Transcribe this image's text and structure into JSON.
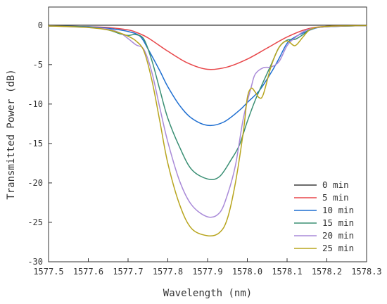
{
  "chart_data": {
    "type": "line",
    "xlabel": "Wavelength (nm)",
    "ylabel": "Transmitted Power (dB)",
    "xlim": [
      1577.5,
      1578.3
    ],
    "ylim": [
      -30,
      2.3
    ],
    "xticks": [
      "1577.5",
      "1577.6",
      "1577.7",
      "1577.8",
      "1577.9",
      "1578.0",
      "1578.1",
      "1578.2",
      "1578.3"
    ],
    "yticks": [
      "0",
      "-5",
      "-10",
      "-15",
      "-20",
      "-25",
      "-30"
    ],
    "grid": false,
    "legend_position": "bottom-right",
    "series": [
      {
        "name": "0 min",
        "color": "#3a3a3a",
        "points": [
          [
            1577.5,
            0.0
          ],
          [
            1578.3,
            0.0
          ]
        ]
      },
      {
        "name": "5 min",
        "color": "#e8474a",
        "points": [
          [
            1577.5,
            -0.1
          ],
          [
            1577.6,
            -0.2
          ],
          [
            1577.65,
            -0.3
          ],
          [
            1577.7,
            -0.6
          ],
          [
            1577.72,
            -0.9
          ],
          [
            1577.75,
            -1.6
          ],
          [
            1577.8,
            -3.3
          ],
          [
            1577.85,
            -4.8
          ],
          [
            1577.9,
            -5.6
          ],
          [
            1577.95,
            -5.3
          ],
          [
            1578.0,
            -4.3
          ],
          [
            1578.05,
            -2.9
          ],
          [
            1578.1,
            -1.5
          ],
          [
            1578.15,
            -0.5
          ],
          [
            1578.2,
            -0.15
          ],
          [
            1578.3,
            -0.05
          ]
        ]
      },
      {
        "name": "10 min",
        "color": "#1f6fd1",
        "points": [
          [
            1577.5,
            -0.1
          ],
          [
            1577.6,
            -0.2
          ],
          [
            1577.65,
            -0.4
          ],
          [
            1577.7,
            -0.8
          ],
          [
            1577.73,
            -1.4
          ],
          [
            1577.75,
            -3.0
          ],
          [
            1577.78,
            -5.8
          ],
          [
            1577.8,
            -7.8
          ],
          [
            1577.83,
            -10.2
          ],
          [
            1577.86,
            -11.8
          ],
          [
            1577.9,
            -12.7
          ],
          [
            1577.94,
            -12.3
          ],
          [
            1577.98,
            -10.8
          ],
          [
            1578.0,
            -9.8
          ],
          [
            1578.03,
            -8.3
          ],
          [
            1578.06,
            -6.0
          ],
          [
            1578.08,
            -4.2
          ],
          [
            1578.1,
            -2.3
          ],
          [
            1578.12,
            -1.5
          ],
          [
            1578.14,
            -1.0
          ],
          [
            1578.17,
            -0.4
          ],
          [
            1578.2,
            -0.2
          ],
          [
            1578.3,
            -0.05
          ]
        ]
      },
      {
        "name": "15 min",
        "color": "#3a8f74",
        "points": [
          [
            1577.5,
            -0.1
          ],
          [
            1577.6,
            -0.25
          ],
          [
            1577.65,
            -0.6
          ],
          [
            1577.68,
            -1.1
          ],
          [
            1577.7,
            -1.3
          ],
          [
            1577.72,
            -1.2
          ],
          [
            1577.74,
            -1.8
          ],
          [
            1577.76,
            -4.5
          ],
          [
            1577.78,
            -8.2
          ],
          [
            1577.8,
            -11.8
          ],
          [
            1577.83,
            -15.5
          ],
          [
            1577.86,
            -18.3
          ],
          [
            1577.9,
            -19.5
          ],
          [
            1577.93,
            -19.2
          ],
          [
            1577.96,
            -17.0
          ],
          [
            1577.98,
            -15.2
          ],
          [
            1578.0,
            -12.2
          ],
          [
            1578.02,
            -9.5
          ],
          [
            1578.04,
            -7.2
          ],
          [
            1578.06,
            -5.0
          ],
          [
            1578.08,
            -2.8
          ],
          [
            1578.1,
            -1.9
          ],
          [
            1578.12,
            -1.8
          ],
          [
            1578.14,
            -1.2
          ],
          [
            1578.16,
            -0.5
          ],
          [
            1578.2,
            -0.2
          ],
          [
            1578.3,
            -0.05
          ]
        ]
      },
      {
        "name": "20 min",
        "color": "#a98ad8",
        "points": [
          [
            1577.5,
            -0.1
          ],
          [
            1577.6,
            -0.3
          ],
          [
            1577.65,
            -0.5
          ],
          [
            1577.68,
            -1.0
          ],
          [
            1577.7,
            -1.7
          ],
          [
            1577.72,
            -2.5
          ],
          [
            1577.74,
            -3.1
          ],
          [
            1577.76,
            -6.0
          ],
          [
            1577.78,
            -10.5
          ],
          [
            1577.8,
            -14.8
          ],
          [
            1577.83,
            -19.8
          ],
          [
            1577.86,
            -22.8
          ],
          [
            1577.9,
            -24.3
          ],
          [
            1577.93,
            -23.8
          ],
          [
            1577.95,
            -21.5
          ],
          [
            1577.97,
            -17.8
          ],
          [
            1577.99,
            -11.8
          ],
          [
            1578.01,
            -7.8
          ],
          [
            1578.02,
            -6.2
          ],
          [
            1578.04,
            -5.4
          ],
          [
            1578.06,
            -5.3
          ],
          [
            1578.08,
            -4.6
          ],
          [
            1578.1,
            -2.6
          ],
          [
            1578.12,
            -1.6
          ],
          [
            1578.15,
            -0.6
          ],
          [
            1578.2,
            -0.2
          ],
          [
            1578.3,
            -0.05
          ]
        ]
      },
      {
        "name": "25 min",
        "color": "#b8a51e",
        "points": [
          [
            1577.5,
            -0.1
          ],
          [
            1577.6,
            -0.3
          ],
          [
            1577.65,
            -0.6
          ],
          [
            1577.68,
            -1.0
          ],
          [
            1577.7,
            -1.4
          ],
          [
            1577.72,
            -2.0
          ],
          [
            1577.74,
            -3.3
          ],
          [
            1577.76,
            -7.0
          ],
          [
            1577.78,
            -12.2
          ],
          [
            1577.8,
            -17.5
          ],
          [
            1577.83,
            -22.8
          ],
          [
            1577.86,
            -25.8
          ],
          [
            1577.9,
            -26.7
          ],
          [
            1577.93,
            -26.3
          ],
          [
            1577.95,
            -24.5
          ],
          [
            1577.97,
            -20.0
          ],
          [
            1577.99,
            -13.5
          ],
          [
            1578.0,
            -9.2
          ],
          [
            1578.01,
            -8.0
          ],
          [
            1578.02,
            -8.5
          ],
          [
            1578.03,
            -9.2
          ],
          [
            1578.04,
            -8.8
          ],
          [
            1578.06,
            -5.2
          ],
          [
            1578.08,
            -2.8
          ],
          [
            1578.1,
            -2.0
          ],
          [
            1578.12,
            -2.6
          ],
          [
            1578.14,
            -1.5
          ],
          [
            1578.16,
            -0.5
          ],
          [
            1578.2,
            -0.15
          ],
          [
            1578.3,
            -0.05
          ]
        ]
      }
    ]
  }
}
